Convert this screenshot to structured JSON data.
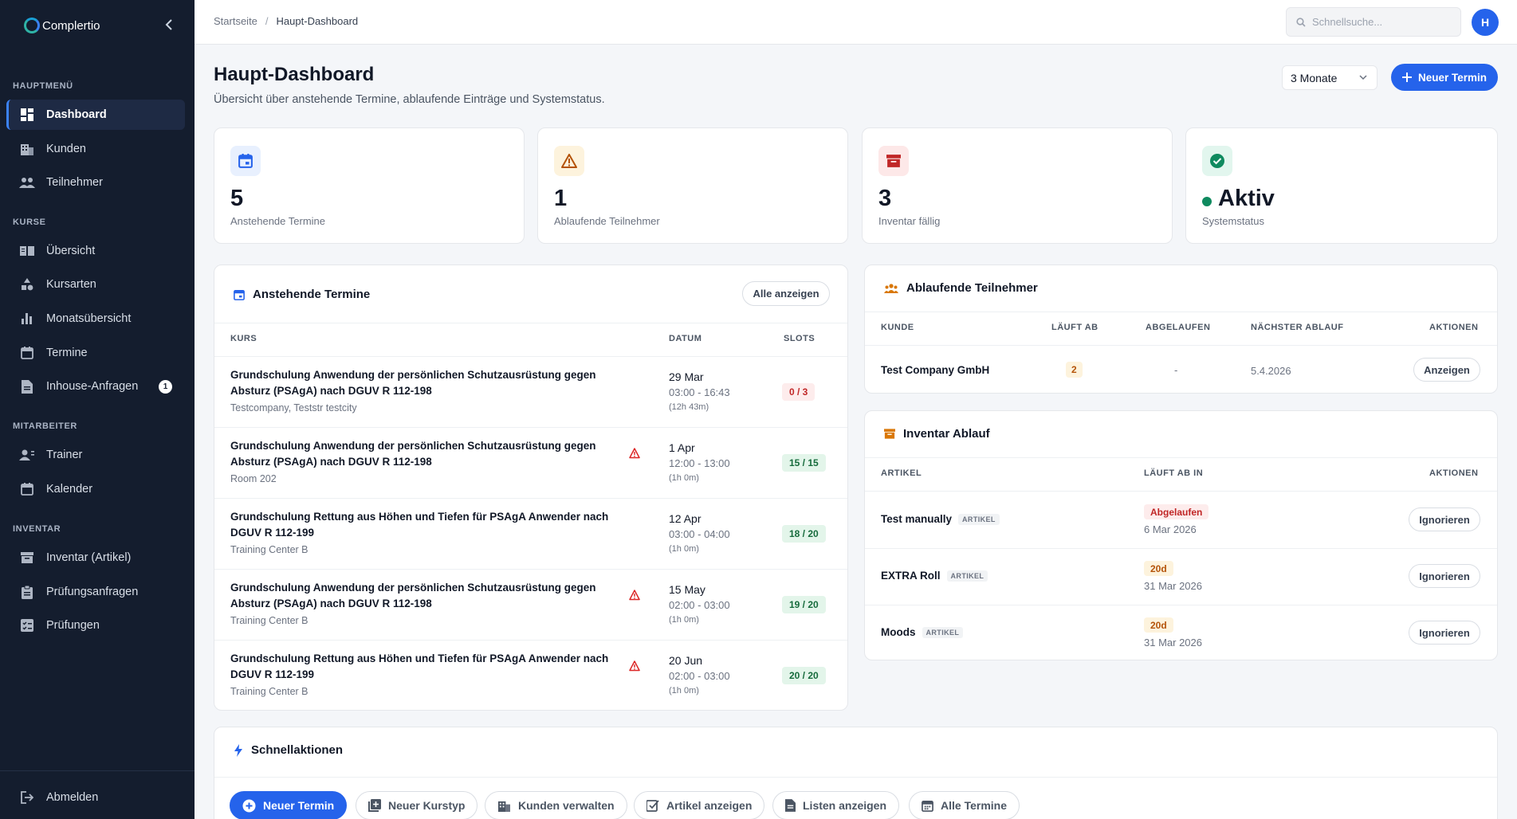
{
  "brand": {
    "name": "Complertio"
  },
  "sidebar": {
    "sections": [
      {
        "label": "HAUPTMENÜ"
      },
      {
        "label": "KURSE"
      },
      {
        "label": "MITARBEITER"
      },
      {
        "label": "INVENTAR"
      }
    ],
    "items": [
      {
        "label": "Dashboard",
        "icon": "dashboard-icon"
      },
      {
        "label": "Kunden",
        "icon": "building-icon"
      },
      {
        "label": "Teilnehmer",
        "icon": "people-icon"
      },
      {
        "label": "Übersicht",
        "icon": "book-icon"
      },
      {
        "label": "Kursarten",
        "icon": "shapes-icon"
      },
      {
        "label": "Monatsübersicht",
        "icon": "bar-chart-icon"
      },
      {
        "label": "Termine",
        "icon": "calendar-icon"
      },
      {
        "label": "Inhouse-Anfragen",
        "icon": "document-icon",
        "badge": "1"
      },
      {
        "label": "Trainer",
        "icon": "trainer-icon"
      },
      {
        "label": "Kalender",
        "icon": "calendar-icon"
      },
      {
        "label": "Inventar (Artikel)",
        "icon": "archive-icon"
      },
      {
        "label": "Prüfungsanfragen",
        "icon": "clipboard-icon"
      },
      {
        "label": "Prüfungen",
        "icon": "checklist-icon"
      }
    ],
    "logout": "Abmelden"
  },
  "header": {
    "breadcrumb": [
      "Startseite",
      "Haupt-Dashboard"
    ],
    "search_placeholder": "Schnellsuche...",
    "avatar": "H"
  },
  "page": {
    "title": "Haupt-Dashboard",
    "subtitle": "Übersicht über anstehende Termine, ablaufende Einträge und Systemstatus.",
    "range": "3 Monate",
    "new_button": "Neuer Termin"
  },
  "stats": [
    {
      "value": "5",
      "label": "Anstehende Termine",
      "icon": "calendar-icon",
      "color": "#2563eb"
    },
    {
      "value": "1",
      "label": "Ablaufende Teilnehmer",
      "icon": "warning-icon",
      "color": "#b45309"
    },
    {
      "value": "3",
      "label": "Inventar fällig",
      "icon": "archive-icon",
      "color": "#c02626"
    },
    {
      "value": "Aktiv",
      "label": "Systemstatus",
      "icon": "check-circle-icon",
      "color": "#0f8a5f"
    }
  ],
  "termine": {
    "title": "Anstehende Termine",
    "all_button": "Alle anzeigen",
    "columns": [
      "KURS",
      "DATUM",
      "SLOTS"
    ],
    "rows": [
      {
        "title": "Grundschulung Anwendung der persönlichen Schutzausrüstung gegen Absturz (PSAgA) nach DGUV R 112-198",
        "location": "Testcompany, Teststr testcity",
        "date": "29 Mar",
        "time": "03:00 - 16:43",
        "duration": "(12h 43m)",
        "slots": "0 / 3",
        "warn": false
      },
      {
        "title": "Grundschulung Anwendung der persönlichen Schutzausrüstung gegen Absturz (PSAgA) nach DGUV R 112-198",
        "location": "Room 202",
        "date": "1 Apr",
        "time": "12:00 - 13:00",
        "duration": "(1h 0m)",
        "slots": "15 / 15",
        "warn": true
      },
      {
        "title": "Grundschulung Rettung aus Höhen und Tiefen für PSAgA Anwender nach DGUV R 112-199",
        "location": "Training Center B",
        "date": "12 Apr",
        "time": "03:00 - 04:00",
        "duration": "(1h 0m)",
        "slots": "18 / 20",
        "warn": false
      },
      {
        "title": "Grundschulung Anwendung der persönlichen Schutzausrüstung gegen Absturz (PSAgA) nach DGUV R 112-198",
        "location": "Training Center B",
        "date": "15 May",
        "time": "02:00 - 03:00",
        "duration": "(1h 0m)",
        "slots": "19 / 20",
        "warn": true
      },
      {
        "title": "Grundschulung Rettung aus Höhen und Tiefen für PSAgA Anwender nach DGUV R 112-199",
        "location": "Training Center B",
        "date": "20 Jun",
        "time": "02:00 - 03:00",
        "duration": "(1h 0m)",
        "slots": "20 / 20",
        "warn": true
      }
    ]
  },
  "teilnehmer": {
    "title": "Ablaufende Teilnehmer",
    "columns": [
      "KUNDE",
      "LÄUFT AB",
      "ABGELAUFEN",
      "NÄCHSTER ABLAUF",
      "AKTIONEN"
    ],
    "rows": [
      {
        "kunde": "Test Company GmbH",
        "laeuft_ab": "2",
        "abgelaufen": "-",
        "naechster": "5.4.2026",
        "action": "Anzeigen"
      }
    ]
  },
  "inventar": {
    "title": "Inventar Ablauf",
    "columns": [
      "ARTIKEL",
      "LÄUFT AB IN",
      "AKTIONEN"
    ],
    "rows": [
      {
        "name": "Test manually",
        "tag": "ARTIKEL",
        "status": "Abgelaufen",
        "date": "6 Mar 2026",
        "action": "Ignorieren"
      },
      {
        "name": "EXTRA Roll",
        "tag": "ARTIKEL",
        "status": "20d",
        "date": "31 Mar 2026",
        "action": "Ignorieren"
      },
      {
        "name": "Moods",
        "tag": "ARTIKEL",
        "status": "20d",
        "date": "31 Mar 2026",
        "action": "Ignorieren"
      }
    ]
  },
  "quick": {
    "title": "Schnellaktionen",
    "actions": [
      {
        "label": "Neuer Termin",
        "icon": "plus-circle-icon"
      },
      {
        "label": "Neuer Kurstyp",
        "icon": "add-library-icon"
      },
      {
        "label": "Kunden verwalten",
        "icon": "building-icon"
      },
      {
        "label": "Artikel anzeigen",
        "icon": "inventory-icon"
      },
      {
        "label": "Listen anzeigen",
        "icon": "document-icon"
      },
      {
        "label": "Alle Termine",
        "icon": "calendar-icon"
      }
    ]
  }
}
